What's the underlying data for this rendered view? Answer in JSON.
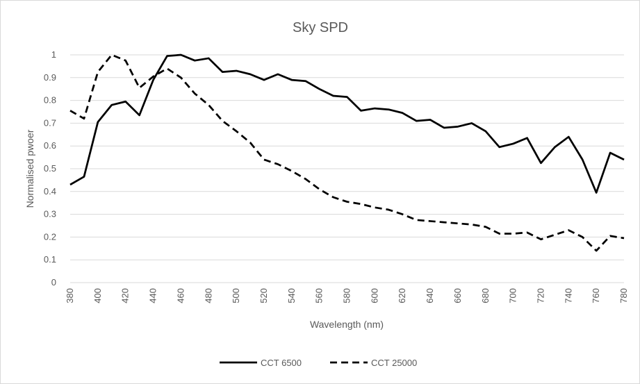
{
  "chart_data": {
    "type": "line",
    "title": "Sky SPD",
    "xlabel": "Wavelength (nm)",
    "ylabel": "Normalised pwoer",
    "xlim": [
      380,
      780
    ],
    "ylim": [
      0,
      1
    ],
    "y_ticks": [
      "0",
      "0.1",
      "0.2",
      "0.3",
      "0.4",
      "0.5",
      "0.6",
      "0.7",
      "0.8",
      "0.9",
      "1"
    ],
    "x": [
      380,
      390,
      400,
      410,
      420,
      430,
      440,
      450,
      460,
      470,
      480,
      490,
      500,
      510,
      520,
      530,
      540,
      550,
      560,
      570,
      580,
      590,
      600,
      610,
      620,
      630,
      640,
      650,
      660,
      670,
      680,
      690,
      700,
      710,
      720,
      730,
      740,
      750,
      760,
      770,
      780
    ],
    "x_ticks": [
      "380",
      "400",
      "420",
      "440",
      "460",
      "480",
      "500",
      "520",
      "540",
      "560",
      "580",
      "600",
      "620",
      "640",
      "660",
      "680",
      "700",
      "720",
      "740",
      "760",
      "780"
    ],
    "grid": "horizontal",
    "legend_position": "bottom",
    "series": [
      {
        "name": "CCT 6500",
        "style": "solid",
        "color": "#000000",
        "values": [
          0.43,
          0.465,
          0.705,
          0.78,
          0.795,
          0.735,
          0.89,
          0.995,
          1.0,
          0.975,
          0.985,
          0.925,
          0.93,
          0.915,
          0.89,
          0.915,
          0.89,
          0.885,
          0.85,
          0.82,
          0.815,
          0.755,
          0.765,
          0.76,
          0.745,
          0.71,
          0.715,
          0.68,
          0.685,
          0.7,
          0.665,
          0.595,
          0.61,
          0.635,
          0.525,
          0.595,
          0.64,
          0.54,
          0.395,
          0.57,
          0.54
        ]
      },
      {
        "name": "CCT 25000",
        "style": "dashed",
        "color": "#000000",
        "values": [
          0.755,
          0.72,
          0.925,
          1.0,
          0.975,
          0.855,
          0.905,
          0.94,
          0.9,
          0.83,
          0.78,
          0.71,
          0.665,
          0.615,
          0.54,
          0.52,
          0.49,
          0.455,
          0.41,
          0.375,
          0.355,
          0.345,
          0.33,
          0.32,
          0.3,
          0.275,
          0.27,
          0.265,
          0.26,
          0.255,
          0.245,
          0.215,
          0.215,
          0.22,
          0.19,
          0.21,
          0.23,
          0.2,
          0.14,
          0.205,
          0.195
        ]
      }
    ]
  }
}
